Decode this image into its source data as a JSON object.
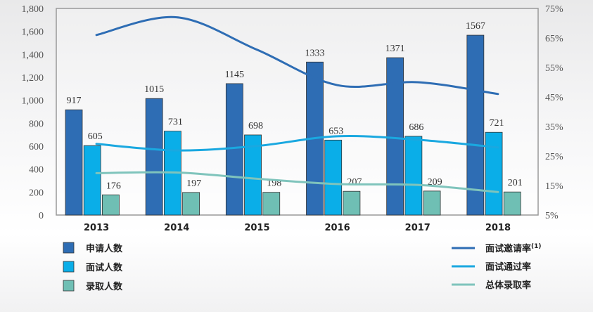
{
  "chart_data": {
    "type": "bar",
    "categories": [
      "2013",
      "2014",
      "2015",
      "2016",
      "2017",
      "2018"
    ],
    "y_left": {
      "range": [
        0,
        1800
      ],
      "ticks": [
        "0",
        "200",
        "400",
        "600",
        "800",
        "1,000",
        "1,200",
        "1,400",
        "1,600",
        "1,800"
      ],
      "tick_values": [
        0,
        200,
        400,
        600,
        800,
        1000,
        1200,
        1400,
        1600,
        1800
      ]
    },
    "y_right": {
      "range": [
        5,
        75
      ],
      "ticks": [
        "5%",
        "15%",
        "25%",
        "35%",
        "45%",
        "55%",
        "65%",
        "75%"
      ],
      "tick_values": [
        5,
        15,
        25,
        35,
        45,
        55,
        65,
        75
      ]
    },
    "bar_series": [
      {
        "name": "申请人数",
        "color": "#2e6db4",
        "values": [
          917,
          1015,
          1145,
          1333,
          1371,
          1567
        ],
        "labels": [
          "917",
          "1015",
          "1145",
          "1333",
          "1371",
          "1567"
        ]
      },
      {
        "name": "面试人数",
        "color": "#0aaee8",
        "values": [
          605,
          731,
          698,
          653,
          686,
          721
        ],
        "labels": [
          "605",
          "731",
          "698",
          "653",
          "686",
          "721"
        ]
      },
      {
        "name": "录取人数",
        "color": "#6fbfb4",
        "values": [
          176,
          197,
          198,
          207,
          209,
          201
        ],
        "labels": [
          "176",
          "197",
          "198",
          "207",
          "209",
          "201"
        ]
      }
    ],
    "line_series": [
      {
        "name": "面试邀请率",
        "superscript": "(1)",
        "color": "#2e6db4",
        "axis": "right",
        "values": [
          66.0,
          72.0,
          61.0,
          49.0,
          50.0,
          46.0
        ]
      },
      {
        "name": "面试通过率",
        "color": "#1aa8e0",
        "axis": "right",
        "values": [
          29.1,
          26.9,
          28.4,
          31.7,
          30.5,
          27.9
        ]
      },
      {
        "name": "总体录取率",
        "color": "#7fc4bc",
        "axis": "right",
        "values": [
          19.2,
          19.4,
          17.3,
          15.5,
          15.2,
          12.8
        ]
      }
    ],
    "grid": false,
    "legend_position": "bottom"
  }
}
